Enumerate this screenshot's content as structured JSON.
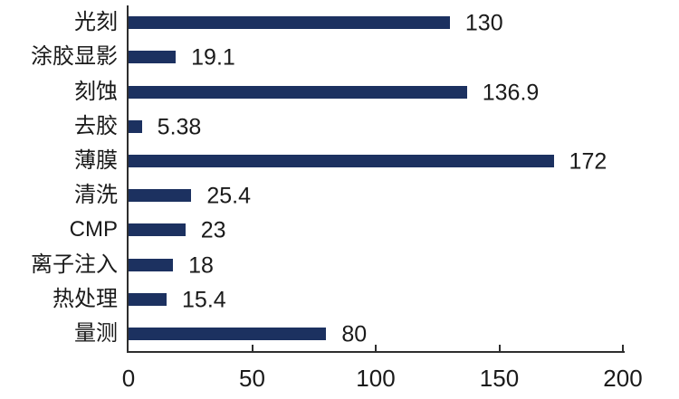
{
  "chart_data": {
    "type": "bar",
    "orientation": "horizontal",
    "title": "",
    "xlabel": "",
    "ylabel": "",
    "categories": [
      "光刻",
      "涂胶显影",
      "刻蚀",
      "去胶",
      "薄膜",
      "清洗",
      "CMP",
      "离子注入",
      "热处理",
      "量测"
    ],
    "values": [
      130,
      19.1,
      136.9,
      5.38,
      172,
      25.4,
      23,
      18,
      15.4,
      80
    ],
    "value_labels": [
      "130",
      "19.1",
      "136.9",
      "5.38",
      "172",
      "25.4",
      "23",
      "18",
      "15.4",
      "80"
    ],
    "x_ticks": [
      0,
      50,
      100,
      150,
      200
    ],
    "xlim": [
      0,
      200
    ],
    "grid": false,
    "legend": false,
    "bar_color": "#1c3160",
    "axis_color": "#2e2e2e",
    "text_color": "#1a1a1a"
  }
}
